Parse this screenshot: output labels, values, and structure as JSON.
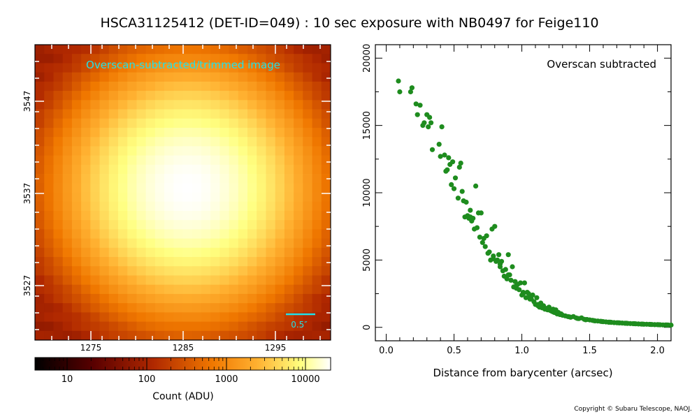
{
  "title": "HSCA31125412 (DET-ID=049) :  10 sec exposure with NB0497 for Feige110",
  "copyright": "Copyright © Subaru Telescope, NAOJ.",
  "colors": {
    "scatter": "#1e8c1e",
    "overlay_text": "#20e0e8",
    "frame": "#000000"
  },
  "image_panel": {
    "overlay_label": "Overscan-subtracted/trimmed image",
    "scale_bar_label": "0.5″",
    "x_ticks": [
      "1275",
      "1285",
      "1295"
    ],
    "y_ticks": [
      "3547",
      "3537",
      "3527"
    ],
    "colorbar": {
      "ticks": [
        "10",
        "100",
        "1000",
        "10000"
      ],
      "label": "Count (ADU)",
      "scale": "log"
    }
  },
  "chart_data": {
    "type": "scatter",
    "title": "",
    "annotation": "Overscan subtracted",
    "xlabel": "Distance from barycenter (arcsec)",
    "ylabel": "",
    "xlim": [
      -0.08,
      2.1
    ],
    "ylim": [
      -1000,
      21000
    ],
    "x_ticks": [
      "0.0",
      "0.5",
      "1.0",
      "1.5",
      "2.0"
    ],
    "y_ticks": [
      "0",
      "5000",
      "10000",
      "15000",
      "20000"
    ],
    "grid": false,
    "series": [
      {
        "points": [
          [
            0.09,
            18300
          ],
          [
            0.1,
            17500
          ],
          [
            0.18,
            17500
          ],
          [
            0.19,
            17800
          ],
          [
            0.22,
            16600
          ],
          [
            0.23,
            15800
          ],
          [
            0.25,
            16500
          ],
          [
            0.27,
            15000
          ],
          [
            0.28,
            15200
          ],
          [
            0.3,
            15800
          ],
          [
            0.31,
            14900
          ],
          [
            0.32,
            15600
          ],
          [
            0.33,
            15200
          ],
          [
            0.34,
            13200
          ],
          [
            0.39,
            13600
          ],
          [
            0.4,
            12700
          ],
          [
            0.41,
            14900
          ],
          [
            0.43,
            12800
          ],
          [
            0.44,
            11600
          ],
          [
            0.45,
            11700
          ],
          [
            0.46,
            12600
          ],
          [
            0.47,
            12100
          ],
          [
            0.48,
            10600
          ],
          [
            0.49,
            12300
          ],
          [
            0.5,
            10300
          ],
          [
            0.51,
            11100
          ],
          [
            0.53,
            9600
          ],
          [
            0.54,
            11900
          ],
          [
            0.55,
            12200
          ],
          [
            0.56,
            10100
          ],
          [
            0.57,
            9400
          ],
          [
            0.58,
            8200
          ],
          [
            0.59,
            9300
          ],
          [
            0.6,
            8300
          ],
          [
            0.61,
            8100
          ],
          [
            0.62,
            8700
          ],
          [
            0.63,
            7900
          ],
          [
            0.64,
            8100
          ],
          [
            0.65,
            7300
          ],
          [
            0.66,
            10500
          ],
          [
            0.67,
            7400
          ],
          [
            0.68,
            8500
          ],
          [
            0.69,
            6700
          ],
          [
            0.7,
            8500
          ],
          [
            0.71,
            6300
          ],
          [
            0.72,
            6600
          ],
          [
            0.73,
            6000
          ],
          [
            0.74,
            6800
          ],
          [
            0.76,
            5600
          ],
          [
            0.77,
            5000
          ],
          [
            0.78,
            7300
          ],
          [
            0.79,
            5300
          ],
          [
            0.8,
            7500
          ],
          [
            0.81,
            4900
          ],
          [
            0.82,
            5000
          ],
          [
            0.83,
            5400
          ],
          [
            0.84,
            4500
          ],
          [
            0.85,
            4900
          ],
          [
            0.86,
            4200
          ],
          [
            0.87,
            3800
          ],
          [
            0.88,
            4300
          ],
          [
            0.89,
            3600
          ],
          [
            0.9,
            5400
          ],
          [
            0.91,
            3900
          ],
          [
            0.92,
            3500
          ],
          [
            0.93,
            4500
          ],
          [
            0.94,
            3000
          ],
          [
            0.95,
            3400
          ],
          [
            0.96,
            2900
          ],
          [
            0.97,
            3200
          ],
          [
            0.98,
            2800
          ],
          [
            0.99,
            3300
          ],
          [
            1.0,
            2400
          ],
          [
            1.01,
            2600
          ],
          [
            1.02,
            3300
          ],
          [
            1.03,
            2200
          ],
          [
            1.04,
            2600
          ],
          [
            1.05,
            2500
          ],
          [
            1.06,
            2300
          ],
          [
            1.07,
            2100
          ],
          [
            1.08,
            2400
          ],
          [
            1.09,
            1900
          ],
          [
            1.1,
            1700
          ],
          [
            1.11,
            2200
          ],
          [
            1.12,
            1600
          ],
          [
            1.13,
            1500
          ],
          [
            1.14,
            1800
          ],
          [
            1.15,
            1450
          ],
          [
            1.16,
            1600
          ],
          [
            1.17,
            1350
          ],
          [
            1.18,
            1400
          ],
          [
            1.19,
            1300
          ],
          [
            1.2,
            1500
          ],
          [
            1.21,
            1250
          ],
          [
            1.22,
            1200
          ],
          [
            1.23,
            1350
          ],
          [
            1.24,
            1100
          ],
          [
            1.25,
            1300
          ],
          [
            1.26,
            1000
          ],
          [
            1.27,
            1100
          ],
          [
            1.28,
            950
          ],
          [
            1.29,
            1000
          ],
          [
            1.3,
            900
          ],
          [
            1.32,
            850
          ],
          [
            1.34,
            800
          ],
          [
            1.36,
            750
          ],
          [
            1.38,
            800
          ],
          [
            1.4,
            700
          ],
          [
            1.42,
            650
          ],
          [
            1.44,
            700
          ],
          [
            1.46,
            600
          ],
          [
            1.48,
            580
          ],
          [
            1.5,
            550
          ],
          [
            1.52,
            520
          ],
          [
            1.54,
            480
          ],
          [
            1.56,
            470
          ],
          [
            1.58,
            450
          ],
          [
            1.6,
            420
          ],
          [
            1.62,
            400
          ],
          [
            1.64,
            380
          ],
          [
            1.66,
            370
          ],
          [
            1.68,
            350
          ],
          [
            1.7,
            340
          ],
          [
            1.72,
            330
          ],
          [
            1.74,
            320
          ],
          [
            1.76,
            300
          ],
          [
            1.78,
            290
          ],
          [
            1.8,
            280
          ],
          [
            1.82,
            270
          ],
          [
            1.84,
            260
          ],
          [
            1.86,
            250
          ],
          [
            1.88,
            240
          ],
          [
            1.9,
            230
          ],
          [
            1.92,
            230
          ],
          [
            1.94,
            220
          ],
          [
            1.96,
            210
          ],
          [
            1.98,
            200
          ],
          [
            2.0,
            200
          ],
          [
            2.02,
            190
          ],
          [
            2.04,
            180
          ],
          [
            2.06,
            180
          ],
          [
            2.08,
            170
          ],
          [
            2.1,
            170
          ],
          [
            0.62,
            8200
          ],
          [
            0.75,
            5500
          ],
          [
            0.79,
            5100
          ],
          [
            0.84,
            4700
          ],
          [
            0.9,
            3900
          ],
          [
            0.96,
            3100
          ],
          [
            1.01,
            2500
          ],
          [
            1.06,
            2100
          ],
          [
            1.12,
            1700
          ],
          [
            1.18,
            1350
          ],
          [
            1.23,
            1150
          ],
          [
            1.29,
            950
          ],
          [
            1.35,
            780
          ],
          [
            1.41,
            660
          ],
          [
            1.47,
            560
          ],
          [
            1.53,
            500
          ],
          [
            1.59,
            430
          ],
          [
            1.65,
            380
          ],
          [
            1.71,
            340
          ],
          [
            1.77,
            300
          ],
          [
            1.83,
            270
          ],
          [
            1.89,
            240
          ],
          [
            1.95,
            215
          ],
          [
            2.01,
            195
          ],
          [
            2.07,
            175
          ]
        ]
      }
    ]
  }
}
